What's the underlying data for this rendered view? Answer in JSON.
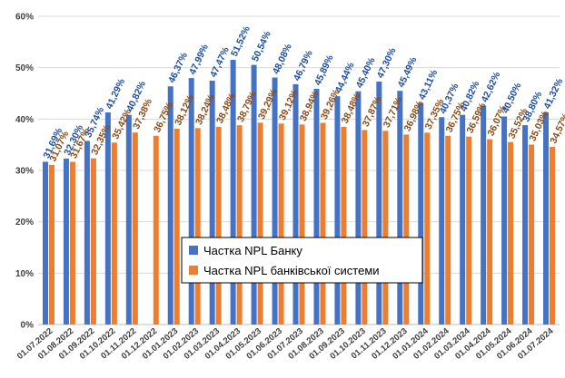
{
  "chart_data": {
    "type": "bar",
    "title": "",
    "xlabel": "",
    "ylabel": "",
    "ylim": [
      0,
      60
    ],
    "yticks": [
      "0%",
      "10%",
      "20%",
      "30%",
      "40%",
      "50%",
      "60%"
    ],
    "grid": true,
    "legend_position": "bottom-center",
    "categories": [
      "01.07.2022",
      "01.08.2022",
      "01.09.2022",
      "01.10.2022",
      "01.11.2022",
      "01.12.2022",
      "01.01.2023",
      "01.02.2023",
      "01.03.2023",
      "01.04.2023",
      "01.05.2023",
      "01.06.2023",
      "01.07.2023",
      "01.08.2023",
      "01.09.2023",
      "01.10.2023",
      "01.11.2023",
      "01.12.2023",
      "01.01.2024",
      "01.02.2024",
      "01.03.2024",
      "01.04.2024",
      "01.05.2024",
      "01.06.2024",
      "01.07.2024"
    ],
    "series": [
      {
        "name": "Частка NPL Банку",
        "color": "#4472c4",
        "values": [
          31.69,
          32.3,
          35.74,
          41.29,
          40.82,
          null,
          46.37,
          47.99,
          47.47,
          51.52,
          50.54,
          48.08,
          46.79,
          45.89,
          44.44,
          45.4,
          47.3,
          45.49,
          43.11,
          40.37,
          40.82,
          42.62,
          40.5,
          38.8,
          41.32
        ],
        "labels": [
          "31,69%",
          "32,30%",
          "35,74%",
          "41,29%",
          "40,82%",
          "",
          "46,37%",
          "47,99%",
          "47,47%",
          "51,52%",
          "50,54%",
          "48,08%",
          "46,79%",
          "45,89%",
          "44,44%",
          "45,40%",
          "47,30%",
          "45,49%",
          "43,11%",
          "40,37%",
          "40,82%",
          "42,62%",
          "40,50%",
          "38,80%",
          "41,32%"
        ]
      },
      {
        "name": "Частка NPL банківської системи",
        "color": "#ed7d31",
        "values": [
          31.07,
          31.67,
          32.35,
          35.42,
          37.38,
          36.75,
          38.12,
          38.24,
          38.48,
          38.79,
          39.29,
          39.12,
          38.94,
          39.26,
          38.48,
          37.87,
          37.71,
          36.98,
          37.35,
          36.75,
          36.59,
          36.07,
          35.52,
          35.03,
          34.57
        ],
        "labels": [
          "31,07%",
          "31,67%",
          "32,35%",
          "35,42%",
          "37,38%",
          "36,75%",
          "38,12%",
          "38,24%",
          "38,48%",
          "38,79%",
          "39,29%",
          "39,12%",
          "38,94%",
          "39,26%",
          "38,48%",
          "37,87%",
          "37,71%",
          "36,98%",
          "37,35%",
          "36,75%",
          "36,59%",
          "36,07%",
          "35,52%",
          "35,03%",
          "34,57%"
        ]
      }
    ]
  }
}
